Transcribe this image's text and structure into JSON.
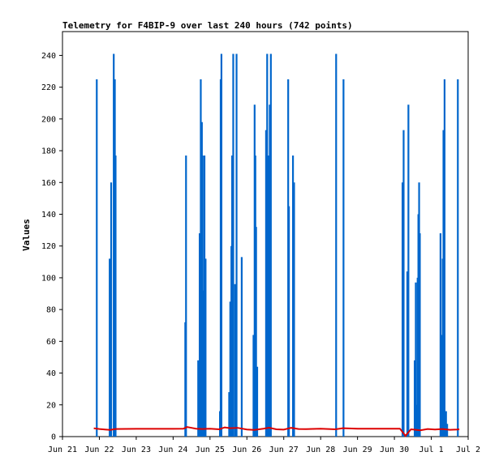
{
  "chart_data": {
    "type": "line",
    "title": "Telemetry for F4BIP-9 over last 240 hours (742 points)",
    "ylabel": "Values",
    "xlabel": "",
    "ylim": [
      0,
      255
    ],
    "xlim": [
      0,
      11
    ],
    "x_ticks": [
      {
        "value": 0,
        "label": "Jun 21"
      },
      {
        "value": 1,
        "label": "Jun 22"
      },
      {
        "value": 2,
        "label": "Jun 23"
      },
      {
        "value": 3,
        "label": "Jun 24"
      },
      {
        "value": 4,
        "label": "Jun 25"
      },
      {
        "value": 5,
        "label": "Jun 26"
      },
      {
        "value": 6,
        "label": "Jun 27"
      },
      {
        "value": 7,
        "label": "Jun 28"
      },
      {
        "value": 8,
        "label": "Jun 29"
      },
      {
        "value": 9,
        "label": "Jun 30"
      },
      {
        "value": 10,
        "label": "Jul 1"
      },
      {
        "value": 11,
        "label": "Jul 2"
      }
    ],
    "y_ticks": [
      0,
      20,
      40,
      60,
      80,
      100,
      120,
      140,
      160,
      180,
      200,
      220,
      240
    ],
    "grid": false,
    "colors": {
      "spikes": "#0066cc",
      "baseline": "#dd0000"
    },
    "series": [
      {
        "type": "spikes",
        "values": [
          [
            0.93,
            225
          ],
          [
            1.28,
            112
          ],
          [
            1.32,
            160
          ],
          [
            1.39,
            241
          ],
          [
            1.42,
            225
          ],
          [
            1.44,
            177
          ],
          [
            1.46,
            0
          ],
          [
            3.33,
            72
          ],
          [
            3.35,
            177
          ],
          [
            3.68,
            48
          ],
          [
            3.72,
            128
          ],
          [
            3.75,
            225
          ],
          [
            3.78,
            198
          ],
          [
            3.8,
            177
          ],
          [
            3.82,
            92
          ],
          [
            3.85,
            177
          ],
          [
            3.88,
            112
          ],
          [
            4.27,
            16
          ],
          [
            4.29,
            225
          ],
          [
            4.31,
            241
          ],
          [
            4.52,
            28
          ],
          [
            4.55,
            85
          ],
          [
            4.58,
            120
          ],
          [
            4.6,
            177
          ],
          [
            4.63,
            241
          ],
          [
            4.68,
            96
          ],
          [
            4.72,
            241
          ],
          [
            4.86,
            113
          ],
          [
            5.18,
            64
          ],
          [
            5.21,
            209
          ],
          [
            5.23,
            177
          ],
          [
            5.25,
            132
          ],
          [
            5.28,
            44
          ],
          [
            5.52,
            193
          ],
          [
            5.55,
            241
          ],
          [
            5.58,
            177
          ],
          [
            5.62,
            209
          ],
          [
            5.65,
            241
          ],
          [
            6.12,
            225
          ],
          [
            6.14,
            145
          ],
          [
            6.25,
            177
          ],
          [
            6.28,
            160
          ],
          [
            7.42,
            241
          ],
          [
            7.62,
            225
          ],
          [
            9.22,
            160
          ],
          [
            9.25,
            193
          ],
          [
            9.35,
            104
          ],
          [
            9.38,
            209
          ],
          [
            9.55,
            48
          ],
          [
            9.58,
            97
          ],
          [
            9.6,
            20
          ],
          [
            9.63,
            100
          ],
          [
            9.65,
            140
          ],
          [
            9.67,
            160
          ],
          [
            9.69,
            128
          ],
          [
            10.0,
            0
          ],
          [
            10.25,
            128
          ],
          [
            10.28,
            64
          ],
          [
            10.31,
            112
          ],
          [
            10.33,
            193
          ],
          [
            10.36,
            225
          ],
          [
            10.4,
            16
          ],
          [
            10.43,
            8
          ],
          [
            10.72,
            225
          ]
        ]
      },
      {
        "type": "line",
        "values": [
          [
            0.85,
            5.2
          ],
          [
            1.0,
            4.8
          ],
          [
            1.15,
            4.5
          ],
          [
            1.3,
            4.2
          ],
          [
            1.38,
            4.6
          ],
          [
            1.45,
            4.8
          ],
          [
            2.0,
            4.9
          ],
          [
            3.0,
            4.9
          ],
          [
            3.28,
            5.0
          ],
          [
            3.38,
            6.0
          ],
          [
            3.5,
            5.5
          ],
          [
            3.62,
            5.0
          ],
          [
            3.8,
            4.8
          ],
          [
            4.0,
            5.0
          ],
          [
            4.25,
            4.6
          ],
          [
            4.4,
            5.8
          ],
          [
            4.55,
            5.3
          ],
          [
            4.75,
            5.5
          ],
          [
            5.0,
            4.5
          ],
          [
            5.2,
            4.2
          ],
          [
            5.45,
            5.0
          ],
          [
            5.6,
            5.6
          ],
          [
            5.8,
            4.6
          ],
          [
            6.0,
            4.4
          ],
          [
            6.2,
            5.5
          ],
          [
            6.4,
            4.8
          ],
          [
            6.6,
            4.7
          ],
          [
            7.0,
            5.0
          ],
          [
            7.4,
            4.6
          ],
          [
            7.6,
            5.3
          ],
          [
            8.0,
            5.0
          ],
          [
            9.0,
            5.0
          ],
          [
            9.15,
            5.0
          ],
          [
            9.3,
            0.5
          ],
          [
            9.45,
            4.6
          ],
          [
            9.7,
            4.0
          ],
          [
            9.9,
            4.8
          ],
          [
            10.1,
            4.5
          ],
          [
            10.3,
            4.8
          ],
          [
            10.5,
            4.3
          ],
          [
            10.7,
            4.5
          ],
          [
            10.76,
            4.6
          ]
        ]
      }
    ]
  }
}
